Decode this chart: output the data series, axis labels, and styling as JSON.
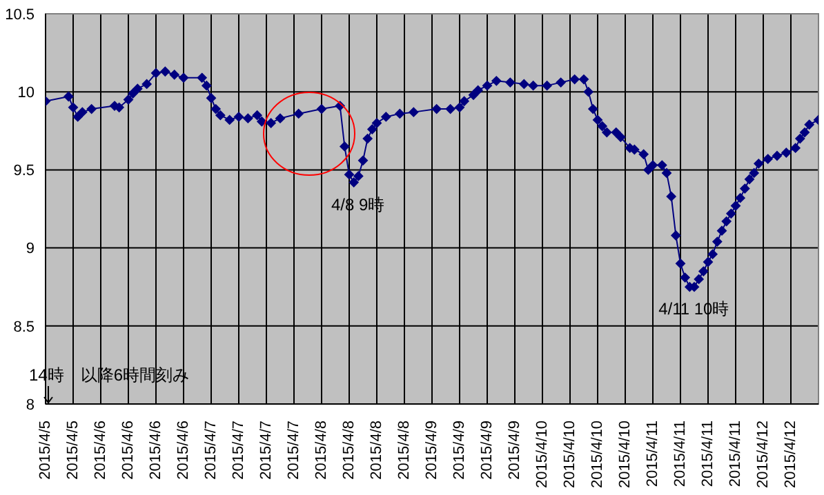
{
  "chart_data": {
    "type": "line",
    "ylim": [
      8,
      10.5
    ],
    "yticks": [
      8,
      8.5,
      9,
      9.5,
      10,
      10.5
    ],
    "xlim": [
      "2015-04-05T14:00",
      "2015-04-12T14:00"
    ],
    "xticks": [
      {
        "value": "2015-04-05T14:00",
        "label": "2015/4/5"
      },
      {
        "value": "2015-04-05T20:00",
        "label": "2015/4/5"
      },
      {
        "value": "2015-04-06T02:00",
        "label": "2015/4/6"
      },
      {
        "value": "2015-04-06T08:00",
        "label": "2015/4/6"
      },
      {
        "value": "2015-04-06T14:00",
        "label": "2015/4/6"
      },
      {
        "value": "2015-04-06T20:00",
        "label": "2015/4/6"
      },
      {
        "value": "2015-04-07T02:00",
        "label": "2015/4/7"
      },
      {
        "value": "2015-04-07T08:00",
        "label": "2015/4/7"
      },
      {
        "value": "2015-04-07T14:00",
        "label": "2015/4/7"
      },
      {
        "value": "2015-04-07T20:00",
        "label": "2015/4/7"
      },
      {
        "value": "2015-04-08T02:00",
        "label": "2015/4/8"
      },
      {
        "value": "2015-04-08T08:00",
        "label": "2015/4/8"
      },
      {
        "value": "2015-04-08T14:00",
        "label": "2015/4/8"
      },
      {
        "value": "2015-04-08T20:00",
        "label": "2015/4/8"
      },
      {
        "value": "2015-04-09T02:00",
        "label": "2015/4/9"
      },
      {
        "value": "2015-04-09T08:00",
        "label": "2015/4/9"
      },
      {
        "value": "2015-04-09T14:00",
        "label": "2015/4/9"
      },
      {
        "value": "2015-04-09T20:00",
        "label": "2015/4/9"
      },
      {
        "value": "2015-04-10T02:00",
        "label": "2015/4/10"
      },
      {
        "value": "2015-04-10T08:00",
        "label": "2015/4/10"
      },
      {
        "value": "2015-04-10T14:00",
        "label": "2015/4/10"
      },
      {
        "value": "2015-04-10T20:00",
        "label": "2015/4/10"
      },
      {
        "value": "2015-04-11T02:00",
        "label": "2015/4/11"
      },
      {
        "value": "2015-04-11T08:00",
        "label": "2015/4/11"
      },
      {
        "value": "2015-04-11T14:00",
        "label": "2015/4/11"
      },
      {
        "value": "2015-04-11T20:00",
        "label": "2015/4/11"
      },
      {
        "value": "2015-04-12T02:00",
        "label": "2015/4/12"
      },
      {
        "value": "2015-04-12T08:00",
        "label": "2015/4/12"
      }
    ],
    "grid": true,
    "marker": "diamond",
    "line_style": "solid",
    "annotations": [
      {
        "text": "4/8 9時",
        "x": "2015-04-08T09:00",
        "y": 9.42
      },
      {
        "text": "4/11 10時",
        "x": "2015-04-11T10:00",
        "y": 8.75
      },
      "14時　以降6時間刻み"
    ],
    "series": [
      {
        "color": "#000080",
        "x": [
          "2015-04-05T14:00",
          "2015-04-05T19:00",
          "2015-04-05T20:00",
          "2015-04-05T21:00",
          "2015-04-05T22:00",
          "2015-04-06T00:00",
          "2015-04-06T05:00",
          "2015-04-06T06:00",
          "2015-04-06T08:00",
          "2015-04-06T09:00",
          "2015-04-06T10:00",
          "2015-04-06T12:00",
          "2015-04-06T14:00",
          "2015-04-06T16:00",
          "2015-04-06T18:00",
          "2015-04-06T20:00",
          "2015-04-07T00:00",
          "2015-04-07T01:00",
          "2015-04-07T02:00",
          "2015-04-07T03:00",
          "2015-04-07T04:00",
          "2015-04-07T06:00",
          "2015-04-07T08:00",
          "2015-04-07T10:00",
          "2015-04-07T12:00",
          "2015-04-07T13:00",
          "2015-04-07T15:00",
          "2015-04-07T17:00",
          "2015-04-07T21:00",
          "2015-04-08T02:00",
          "2015-04-08T06:00",
          "2015-04-08T07:00",
          "2015-04-08T08:00",
          "2015-04-08T09:00",
          "2015-04-08T10:00",
          "2015-04-08T11:00",
          "2015-04-08T12:00",
          "2015-04-08T13:00",
          "2015-04-08T14:00",
          "2015-04-08T16:00",
          "2015-04-08T19:00",
          "2015-04-08T22:00",
          "2015-04-09T03:00",
          "2015-04-09T06:00",
          "2015-04-09T08:00",
          "2015-04-09T09:00",
          "2015-04-09T11:00",
          "2015-04-09T12:00",
          "2015-04-09T14:00",
          "2015-04-09T16:00",
          "2015-04-09T19:00",
          "2015-04-09T22:00",
          "2015-04-10T00:00",
          "2015-04-10T03:00",
          "2015-04-10T06:00",
          "2015-04-10T09:00",
          "2015-04-10T11:00",
          "2015-04-10T12:00",
          "2015-04-10T13:00",
          "2015-04-10T14:00",
          "2015-04-10T15:00",
          "2015-04-10T16:00",
          "2015-04-10T18:00",
          "2015-04-10T19:00",
          "2015-04-10T21:00",
          "2015-04-10T22:00",
          "2015-04-11T00:00",
          "2015-04-11T01:00",
          "2015-04-11T02:00",
          "2015-04-11T04:00",
          "2015-04-11T05:00",
          "2015-04-11T06:00",
          "2015-04-11T07:00",
          "2015-04-11T08:00",
          "2015-04-11T09:00",
          "2015-04-11T10:00",
          "2015-04-11T11:00",
          "2015-04-11T12:00",
          "2015-04-11T13:00",
          "2015-04-11T14:00",
          "2015-04-11T15:00",
          "2015-04-11T16:00",
          "2015-04-11T17:00",
          "2015-04-11T18:00",
          "2015-04-11T19:00",
          "2015-04-11T20:00",
          "2015-04-11T21:00",
          "2015-04-11T22:00",
          "2015-04-11T23:00",
          "2015-04-12T00:00",
          "2015-04-12T01:00",
          "2015-04-12T03:00",
          "2015-04-12T05:00",
          "2015-04-12T07:00",
          "2015-04-12T09:00",
          "2015-04-12T10:00",
          "2015-04-12T11:00",
          "2015-04-12T12:00",
          "2015-04-12T14:00"
        ],
        "values": [
          9.94,
          9.97,
          9.9,
          9.84,
          9.87,
          9.89,
          9.91,
          9.9,
          9.95,
          9.99,
          10.02,
          10.05,
          10.12,
          10.13,
          10.11,
          10.09,
          10.09,
          10.04,
          9.96,
          9.89,
          9.85,
          9.82,
          9.84,
          9.83,
          9.85,
          9.81,
          9.8,
          9.83,
          9.86,
          9.89,
          9.91,
          9.65,
          9.47,
          9.42,
          9.46,
          9.56,
          9.7,
          9.76,
          9.8,
          9.84,
          9.86,
          9.87,
          9.89,
          9.89,
          9.9,
          9.94,
          9.98,
          10.01,
          10.04,
          10.07,
          10.06,
          10.05,
          10.04,
          10.04,
          10.06,
          10.08,
          10.08,
          10.0,
          9.89,
          9.82,
          9.78,
          9.74,
          9.74,
          9.71,
          9.64,
          9.63,
          9.6,
          9.5,
          9.53,
          9.53,
          9.48,
          9.33,
          9.08,
          8.9,
          8.81,
          8.75,
          8.75,
          8.8,
          8.85,
          8.91,
          8.96,
          9.04,
          9.11,
          9.17,
          9.22,
          9.27,
          9.32,
          9.38,
          9.44,
          9.48,
          9.54,
          9.57,
          9.59,
          9.61,
          9.64,
          9.7,
          9.74,
          9.79,
          9.82
        ]
      }
    ]
  }
}
